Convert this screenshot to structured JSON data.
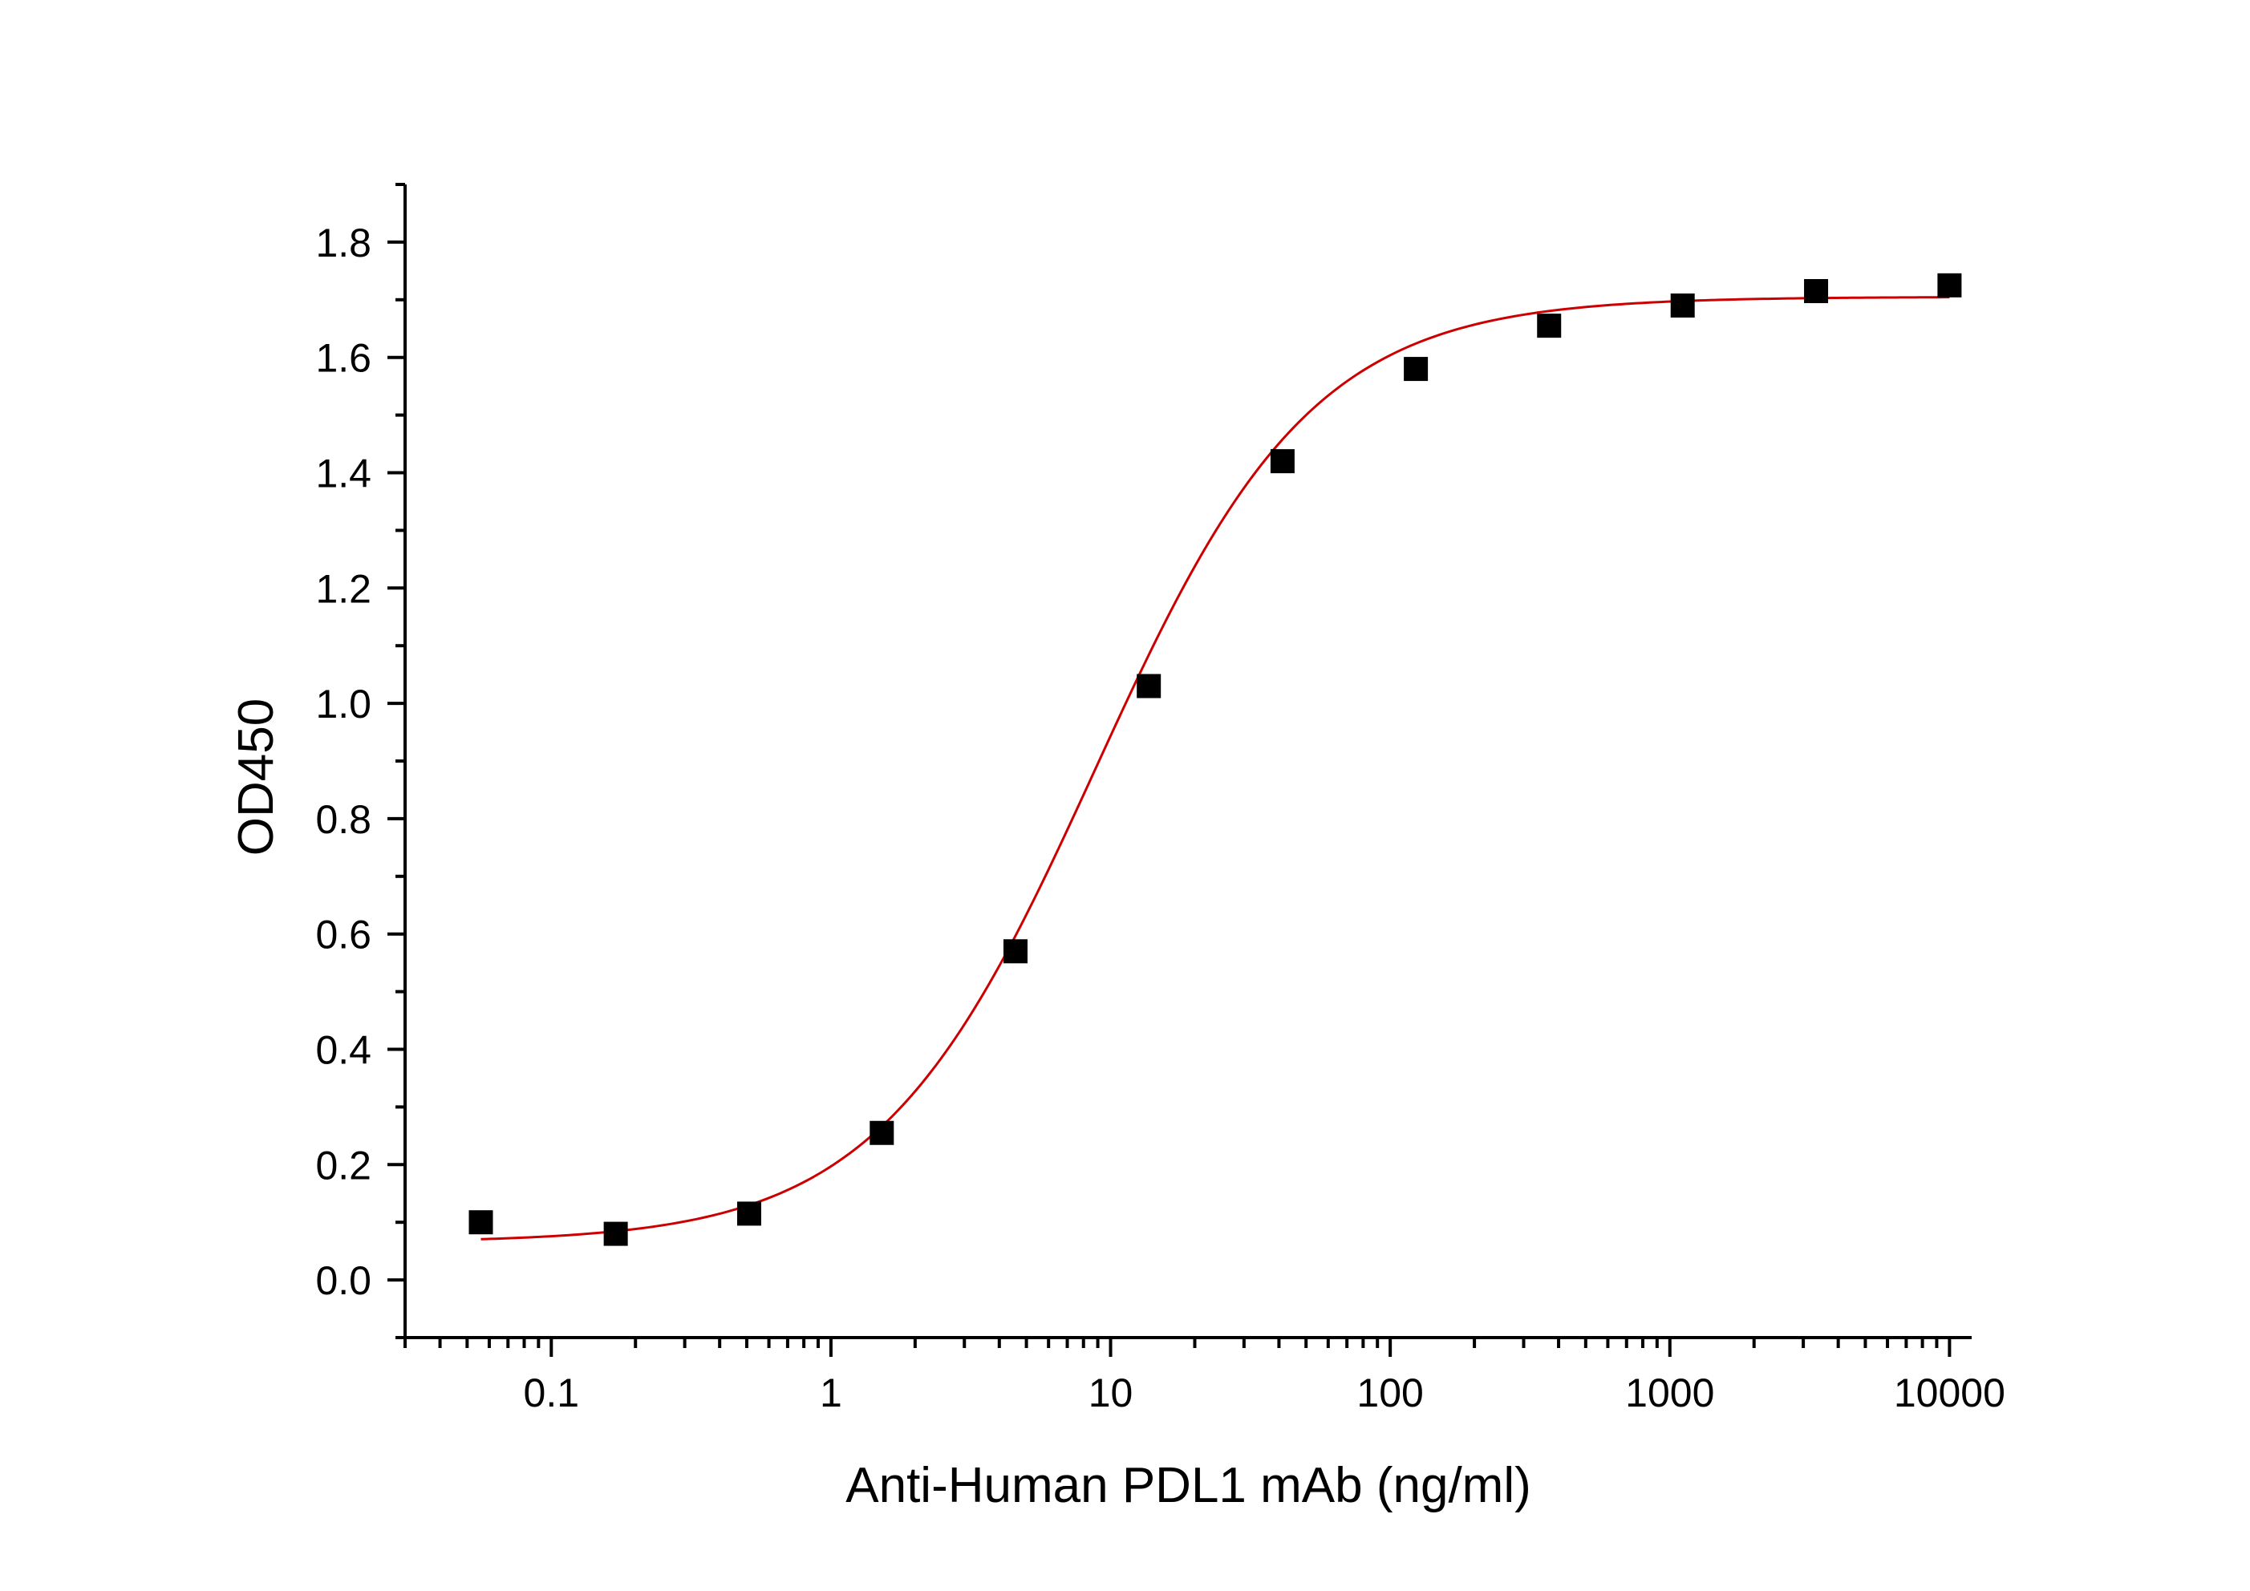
{
  "chart_data": {
    "type": "scatter",
    "xlabel": "Anti-Human PDL1 mAb (ng/ml)",
    "ylabel": "OD450",
    "x_scale": "log",
    "xlim": [
      0.03,
      12000
    ],
    "ylim": [
      -0.1,
      1.9
    ],
    "x_ticks": [
      0.1,
      1,
      10,
      100,
      1000,
      10000
    ],
    "x_tick_labels": [
      "0.1",
      "1",
      "10",
      "100",
      "1000",
      "10000"
    ],
    "y_ticks": [
      0.0,
      0.2,
      0.4,
      0.6,
      0.8,
      1.0,
      1.2,
      1.4,
      1.6,
      1.8
    ],
    "y_tick_labels": [
      "0.0",
      "0.2",
      "0.4",
      "0.6",
      "0.8",
      "1.0",
      "1.2",
      "1.4",
      "1.6",
      "1.8"
    ],
    "grid": false,
    "series": [
      {
        "marker": "square",
        "color": "#000000",
        "x": [
          0.056,
          0.17,
          0.51,
          1.52,
          4.57,
          13.7,
          41.2,
          123.5,
          370,
          1111,
          3333,
          10000
        ],
        "y": [
          0.1,
          0.08,
          0.115,
          0.255,
          0.57,
          1.03,
          1.42,
          1.58,
          1.655,
          1.69,
          1.715,
          1.725
        ]
      }
    ],
    "fit_curve": {
      "type": "4PL",
      "color": "#cc0000",
      "bottom": 0.065,
      "top": 1.705,
      "ec50": 8.8,
      "hill": 1.12,
      "x_range": [
        0.056,
        10000
      ]
    }
  }
}
